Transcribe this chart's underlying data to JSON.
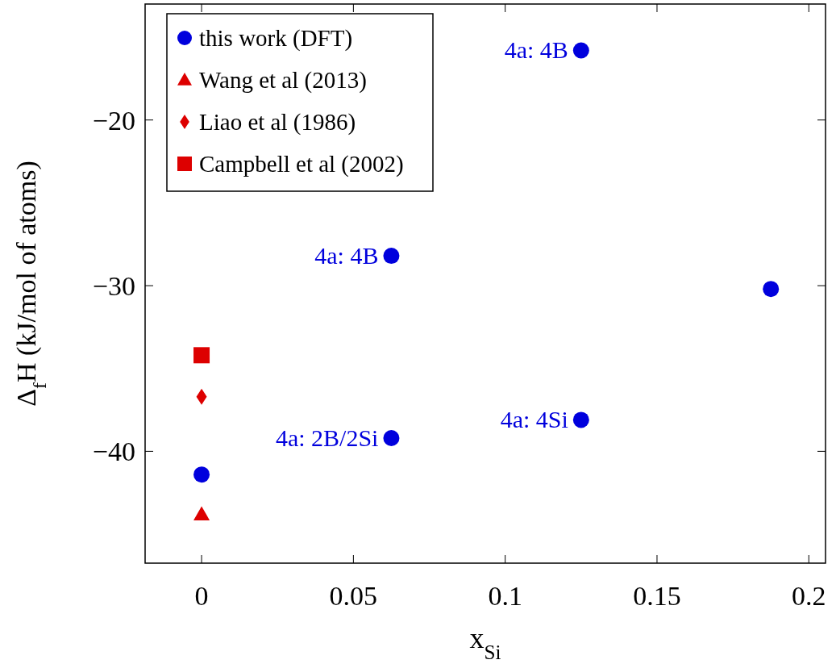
{
  "chart_data": {
    "type": "scatter",
    "xlabel": "x$_{Si}$",
    "ylabel": "Δ$_{f}$H (kJ/mol of atoms)",
    "xlim": [
      -0.0186,
      0.2055
    ],
    "ylim": [
      -46.75,
      -13
    ],
    "xticks": [
      0,
      0.05,
      0.1,
      0.15,
      0.2
    ],
    "yticks": [
      {
        "value": -20,
        "label": "−20"
      },
      {
        "value": -30,
        "label": "−30"
      },
      {
        "value": -40,
        "label": "−40"
      }
    ],
    "legend": "top left",
    "grid": false,
    "series": [
      {
        "name": "this work (DFT)",
        "color": "#0000dd",
        "marker": "circle",
        "x": [
          0,
          0.0625,
          0.0625,
          0.125,
          0.125,
          0.1875
        ],
        "values": [
          -41.4,
          -28.2,
          -39.2,
          -15.8,
          -38.1,
          -30.2
        ],
        "value_labels": [
          null,
          "4a: 4B",
          "4a: 2B/2Si",
          "4a: 4B",
          "4a: 4Si",
          null
        ]
      },
      {
        "name": "Wang et al (2013)",
        "color": "#dd0000",
        "marker": "triangle",
        "x": [
          0
        ],
        "values": [
          -43.8
        ]
      },
      {
        "name": "Liao et al (1986)",
        "color": "#dd0000",
        "marker": "diamond",
        "x": [
          0
        ],
        "values": [
          -36.7
        ]
      },
      {
        "name": "Campbell et al (2002)",
        "color": "#dd0000",
        "marker": "square",
        "x": [
          0
        ],
        "values": [
          -34.2
        ]
      }
    ]
  }
}
